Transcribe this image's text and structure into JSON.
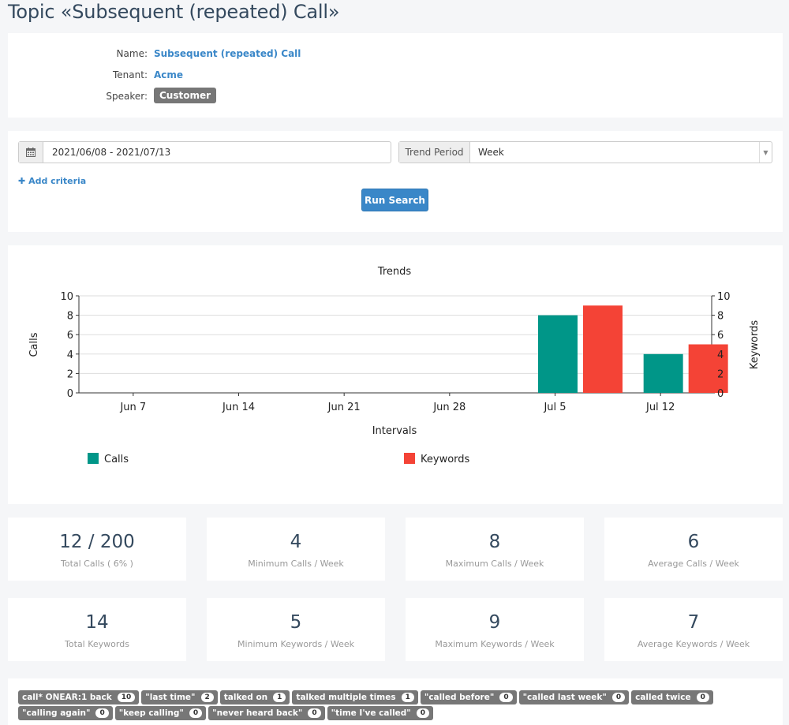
{
  "page": {
    "title": "Topic «Subsequent (repeated) Call»"
  },
  "info": {
    "name_label": "Name:",
    "name_value": "Subsequent (repeated) Call",
    "tenant_label": "Tenant:",
    "tenant_value": "Acme",
    "speaker_label": "Speaker:",
    "speaker_value": "Customer"
  },
  "search": {
    "date_range": "2021/06/08 - 2021/07/13",
    "trend_period_label": "Trend Period",
    "trend_period_value": "Week",
    "add_criteria": "Add criteria",
    "run_label": "Run Search"
  },
  "chart_data": {
    "type": "bar",
    "title": "Trends",
    "xlabel": "Intervals",
    "ylabel": "Calls",
    "y2label": "Keywords",
    "categories": [
      "Jun 7",
      "Jun 14",
      "Jun 21",
      "Jun 28",
      "Jul 5",
      "Jul 12"
    ],
    "ylim": [
      0,
      10
    ],
    "y2lim": [
      0,
      10
    ],
    "yticks": [
      0,
      2,
      4,
      6,
      8,
      10
    ],
    "grid": true,
    "legend_position": "bottom",
    "series": [
      {
        "name": "Calls",
        "axis": "left",
        "color": "#009688",
        "values": [
          0,
          0,
          0,
          0,
          8,
          4
        ]
      },
      {
        "name": "Keywords",
        "axis": "right",
        "color": "#f44336",
        "values": [
          0,
          0,
          0,
          0,
          9,
          5
        ]
      }
    ]
  },
  "stats": {
    "calls": [
      {
        "value": "12 / 200",
        "label": "Total Calls ( 6% )"
      },
      {
        "value": "4",
        "label": "Minimum Calls / Week"
      },
      {
        "value": "8",
        "label": "Maximum Calls / Week"
      },
      {
        "value": "6",
        "label": "Average Calls / Week"
      }
    ],
    "keywords": [
      {
        "value": "14",
        "label": "Total Keywords"
      },
      {
        "value": "5",
        "label": "Minimum Keywords / Week"
      },
      {
        "value": "9",
        "label": "Maximum Keywords / Week"
      },
      {
        "value": "7",
        "label": "Average Keywords / Week"
      }
    ]
  },
  "keywords": [
    {
      "text": "call* ONEAR:1 back",
      "count": "10"
    },
    {
      "text": "\"last time\"",
      "count": "2"
    },
    {
      "text": "talked on",
      "count": "1"
    },
    {
      "text": "talked multiple times",
      "count": "1"
    },
    {
      "text": "\"called before\"",
      "count": "0"
    },
    {
      "text": "\"called last week\"",
      "count": "0"
    },
    {
      "text": "called twice",
      "count": "0"
    },
    {
      "text": "\"calling again\"",
      "count": "0"
    },
    {
      "text": "\"keep calling\"",
      "count": "0"
    },
    {
      "text": "\"never heard back\"",
      "count": "0"
    },
    {
      "text": "\"time I've called\"",
      "count": "0"
    }
  ],
  "icons": {
    "calendar": "calendar-icon",
    "plus": "plus-icon",
    "caret": "caret-down-icon"
  }
}
